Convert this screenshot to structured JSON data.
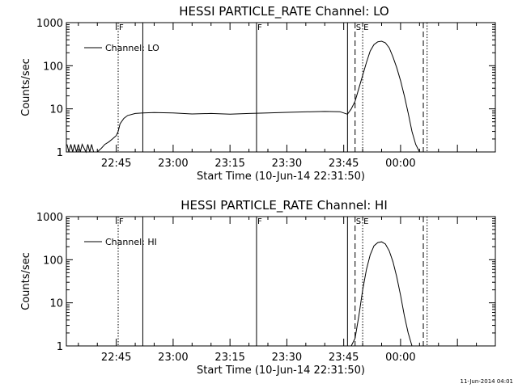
{
  "footer": {
    "timestamp": "11-Jun-2014 04:01"
  },
  "chart_data": [
    {
      "type": "line",
      "title": "HESSI PARTICLE_RATE Channel: LO",
      "xlabel": "Start Time (10-Jun-14 22:31:50)",
      "ylabel": "Counts/sec",
      "yscale": "log",
      "xlim": [
        "22:31:50",
        "00:25"
      ],
      "ylim": [
        1,
        1000
      ],
      "xtick_labels": [
        "22:45",
        "23:00",
        "23:15",
        "23:30",
        "23:45",
        "00:00"
      ],
      "ytick_labels": [
        "1",
        "10",
        "100",
        "1000"
      ],
      "legend": {
        "entries": [
          "Channel: LO"
        ],
        "placement": "top-left"
      },
      "markers": [
        {
          "time": "22:45:30",
          "style": "dotted",
          "label": "F"
        },
        {
          "time": "22:52",
          "style": "solid",
          "label": ""
        },
        {
          "time": "23:22",
          "style": "solid",
          "label": "F"
        },
        {
          "time": "23:46",
          "style": "solid",
          "label": ""
        },
        {
          "time": "23:48",
          "style": "dashed",
          "label": "S"
        },
        {
          "time": "23:50",
          "style": "dotted",
          "label": "E"
        },
        {
          "time": "00:06",
          "style": "dashed",
          "label": ""
        },
        {
          "time": "00:07",
          "style": "dotted",
          "label": ""
        }
      ],
      "series": [
        {
          "name": "Channel: LO",
          "points": [
            [
              "22:32",
              1.5
            ],
            [
              "22:32:30",
              1.0
            ],
            [
              "22:33",
              1.5
            ],
            [
              "22:33:30",
              1.0
            ],
            [
              "22:34",
              1.5
            ],
            [
              "22:34:30",
              1.0
            ],
            [
              "22:35",
              1.5
            ],
            [
              "22:35:30",
              1.0
            ],
            [
              "22:36",
              1.5
            ],
            [
              "22:37",
              1.0
            ],
            [
              "22:37:30",
              1.5
            ],
            [
              "22:38",
              1.0
            ],
            [
              "22:38:30",
              1.5
            ],
            [
              "22:39",
              1.0
            ],
            [
              "22:40",
              1.0
            ],
            [
              "22:41",
              1.2
            ],
            [
              "22:42",
              1.5
            ],
            [
              "22:43",
              1.7
            ],
            [
              "22:44",
              2.0
            ],
            [
              "22:45",
              2.4
            ],
            [
              "22:45:30",
              3.0
            ],
            [
              "22:46",
              4.5
            ],
            [
              "22:47",
              6.0
            ],
            [
              "22:48",
              7.0
            ],
            [
              "22:50",
              7.8
            ],
            [
              "22:52",
              8.0
            ],
            [
              "22:55",
              8.2
            ],
            [
              "23:00",
              8.0
            ],
            [
              "23:05",
              7.6
            ],
            [
              "23:10",
              7.8
            ],
            [
              "23:15",
              7.5
            ],
            [
              "23:20",
              7.8
            ],
            [
              "23:25",
              8.0
            ],
            [
              "23:30",
              8.3
            ],
            [
              "23:35",
              8.5
            ],
            [
              "23:40",
              8.7
            ],
            [
              "23:44",
              8.6
            ],
            [
              "23:46",
              7.5
            ],
            [
              "23:47",
              10
            ],
            [
              "23:48",
              15
            ],
            [
              "23:49",
              30
            ],
            [
              "23:50",
              60
            ],
            [
              "23:51",
              120
            ],
            [
              "23:52",
              220
            ],
            [
              "23:53",
              310
            ],
            [
              "23:54",
              360
            ],
            [
              "23:55",
              370
            ],
            [
              "23:56",
              340
            ],
            [
              "23:57",
              260
            ],
            [
              "23:58",
              160
            ],
            [
              "23:59",
              90
            ],
            [
              "00:00",
              45
            ],
            [
              "00:01",
              20
            ],
            [
              "00:02",
              8
            ],
            [
              "00:03",
              3
            ],
            [
              "00:04",
              1.5
            ],
            [
              "00:05",
              1.0
            ],
            [
              "00:06",
              1.0
            ]
          ]
        }
      ]
    },
    {
      "type": "line",
      "title": "HESSI PARTICLE_RATE Channel: HI",
      "xlabel": "Start Time (10-Jun-14 22:31:50)",
      "ylabel": "Counts/sec",
      "yscale": "log",
      "xlim": [
        "22:31:50",
        "00:25"
      ],
      "ylim": [
        1,
        1000
      ],
      "xtick_labels": [
        "22:45",
        "23:00",
        "23:15",
        "23:30",
        "23:45",
        "00:00"
      ],
      "ytick_labels": [
        "1",
        "10",
        "100",
        "1000"
      ],
      "legend": {
        "entries": [
          "Channel: HI"
        ],
        "placement": "top-left"
      },
      "markers": [
        {
          "time": "22:45:30",
          "style": "dotted",
          "label": "F"
        },
        {
          "time": "22:52",
          "style": "solid",
          "label": ""
        },
        {
          "time": "23:22",
          "style": "solid",
          "label": "F"
        },
        {
          "time": "23:46",
          "style": "solid",
          "label": ""
        },
        {
          "time": "23:48",
          "style": "dashed",
          "label": "S"
        },
        {
          "time": "23:50",
          "style": "dotted",
          "label": "E"
        },
        {
          "time": "00:06",
          "style": "dashed",
          "label": ""
        },
        {
          "time": "00:07",
          "style": "dotted",
          "label": ""
        }
      ],
      "series": [
        {
          "name": "Channel: HI",
          "points": [
            [
              "23:47",
              1.0
            ],
            [
              "23:48",
              1.5
            ],
            [
              "23:49",
              5
            ],
            [
              "23:50",
              20
            ],
            [
              "23:51",
              60
            ],
            [
              "23:52",
              130
            ],
            [
              "23:53",
              210
            ],
            [
              "23:54",
              250
            ],
            [
              "23:55",
              260
            ],
            [
              "23:56",
              230
            ],
            [
              "23:57",
              160
            ],
            [
              "23:58",
              90
            ],
            [
              "23:59",
              40
            ],
            [
              "00:00",
              15
            ],
            [
              "00:01",
              5
            ],
            [
              "00:02",
              2
            ],
            [
              "00:03",
              1.0
            ]
          ]
        }
      ]
    }
  ]
}
